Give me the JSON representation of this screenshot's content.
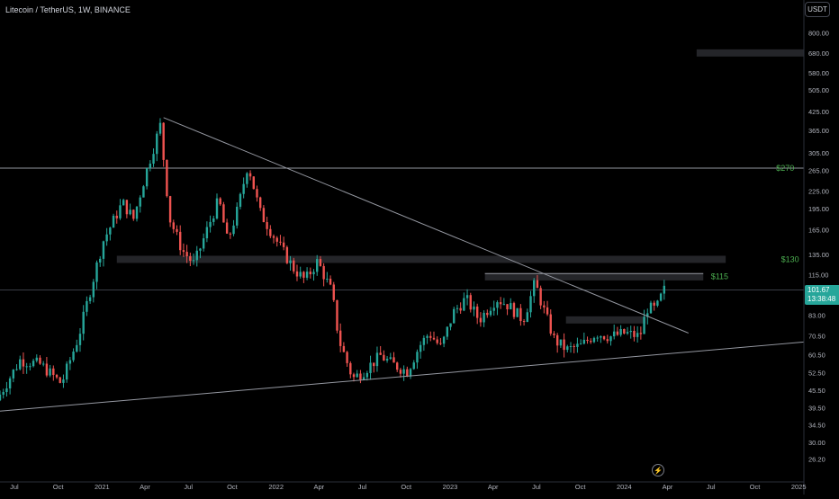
{
  "header": {
    "title": "Litecoin / TetherUS, 1W, BINANCE",
    "currency": "USDT"
  },
  "price_label": {
    "price": "101.67",
    "countdown": "13:38:48"
  },
  "colors": {
    "background": "#000000",
    "up": "#26a69a",
    "down": "#ef5350",
    "text": "#d1d4dc",
    "line": "#9598a1",
    "level_text": "#4caf50"
  },
  "icons": {
    "replay": "lightning-icon"
  },
  "chart_data": {
    "type": "candlestick",
    "title": "Litecoin / TetherUS, 1W, BINANCE",
    "y_scale": "log",
    "ylim": [
      24.5,
      900
    ],
    "y_ticks": [
      "800.00",
      "680.00",
      "580.00",
      "505.00",
      "425.00",
      "365.00",
      "305.00",
      "265.00",
      "225.00",
      "195.00",
      "165.00",
      "135.00",
      "115.00",
      "101.67",
      "83.00",
      "70.50",
      "60.50",
      "52.50",
      "45.50",
      "39.50",
      "34.50",
      "30.00",
      "26.20"
    ],
    "x_ticks": [
      "Jul",
      "Oct",
      "2021",
      "Apr",
      "Jul",
      "Oct",
      "2022",
      "Apr",
      "Jul",
      "Oct",
      "2023",
      "Apr",
      "Jul",
      "Oct",
      "2024",
      "Apr",
      "Jul",
      "Oct",
      "2025"
    ],
    "x_tick_dates": [
      "2020-07-01",
      "2020-10-01",
      "2021-01-01",
      "2021-04-01",
      "2021-07-01",
      "2021-10-01",
      "2022-01-01",
      "2022-04-01",
      "2022-07-01",
      "2022-10-01",
      "2023-01-01",
      "2023-04-01",
      "2023-07-01",
      "2023-10-01",
      "2024-01-01",
      "2024-04-01",
      "2024-07-01",
      "2024-10-01",
      "2025-01-01"
    ],
    "x_range": [
      "2020-06-01",
      "2025-01-12"
    ],
    "current_price": 101.67,
    "levels": [
      {
        "label": "$270",
        "value": 270
      },
      {
        "label": "$130",
        "value": 130
      },
      {
        "label": "$115",
        "value": 115
      }
    ],
    "zones": [
      {
        "from": "2024-06-01",
        "to": "2025-01-12",
        "value": 680
      },
      {
        "from": "2021-02-01",
        "to": "2024-08-01",
        "value": 130
      },
      {
        "from": "2023-03-15",
        "to": "2024-06-15",
        "value": 113
      },
      {
        "from": "2023-09-01",
        "to": "2024-02-15",
        "value": 80
      }
    ],
    "trendlines": [
      {
        "points": [
          [
            "2021-05-10",
            405
          ],
          [
            "2024-05-15",
            72
          ]
        ]
      },
      {
        "points": [
          [
            "2020-06-01",
            38.5
          ],
          [
            "2025-01-12",
            67
          ]
        ]
      }
    ],
    "anchors": [
      [
        "2020-06-01",
        42
      ],
      [
        "2020-07-20",
        58
      ],
      [
        "2020-09-01",
        56
      ],
      [
        "2020-10-15",
        48
      ],
      [
        "2020-11-20",
        70
      ],
      [
        "2020-12-10",
        95
      ],
      [
        "2021-01-10",
        150
      ],
      [
        "2021-02-20",
        205
      ],
      [
        "2021-03-15",
        180
      ],
      [
        "2021-04-10",
        260
      ],
      [
        "2021-05-10",
        380
      ],
      [
        "2021-05-30",
        180
      ],
      [
        "2021-06-25",
        140
      ],
      [
        "2021-07-20",
        125
      ],
      [
        "2021-08-25",
        180
      ],
      [
        "2021-09-10",
        210
      ],
      [
        "2021-09-28",
        150
      ],
      [
        "2021-10-20",
        195
      ],
      [
        "2021-11-10",
        280
      ],
      [
        "2021-12-05",
        190
      ],
      [
        "2022-01-15",
        145
      ],
      [
        "2022-02-15",
        120
      ],
      [
        "2022-03-10",
        110
      ],
      [
        "2022-04-05",
        128
      ],
      [
        "2022-05-05",
        100
      ],
      [
        "2022-05-20",
        68
      ],
      [
        "2022-06-18",
        50
      ],
      [
        "2022-07-10",
        53
      ],
      [
        "2022-08-15",
        60
      ],
      [
        "2022-09-10",
        56
      ],
      [
        "2022-10-10",
        53
      ],
      [
        "2022-11-05",
        65
      ],
      [
        "2022-11-25",
        72
      ],
      [
        "2022-12-20",
        64
      ],
      [
        "2023-01-15",
        85
      ],
      [
        "2023-02-10",
        95
      ],
      [
        "2023-03-10",
        80
      ],
      [
        "2023-04-15",
        95
      ],
      [
        "2023-05-10",
        90
      ],
      [
        "2023-06-10",
        80
      ],
      [
        "2023-06-25",
        95
      ],
      [
        "2023-07-05",
        108
      ],
      [
        "2023-07-20",
        90
      ],
      [
        "2023-08-15",
        68
      ],
      [
        "2023-09-10",
        63
      ],
      [
        "2023-10-10",
        65
      ],
      [
        "2023-11-10",
        72
      ],
      [
        "2023-12-10",
        70
      ],
      [
        "2024-01-10",
        72
      ],
      [
        "2024-02-10",
        70
      ],
      [
        "2024-02-25",
        88
      ],
      [
        "2024-03-15",
        87
      ],
      [
        "2024-03-31",
        101.67
      ]
    ]
  }
}
